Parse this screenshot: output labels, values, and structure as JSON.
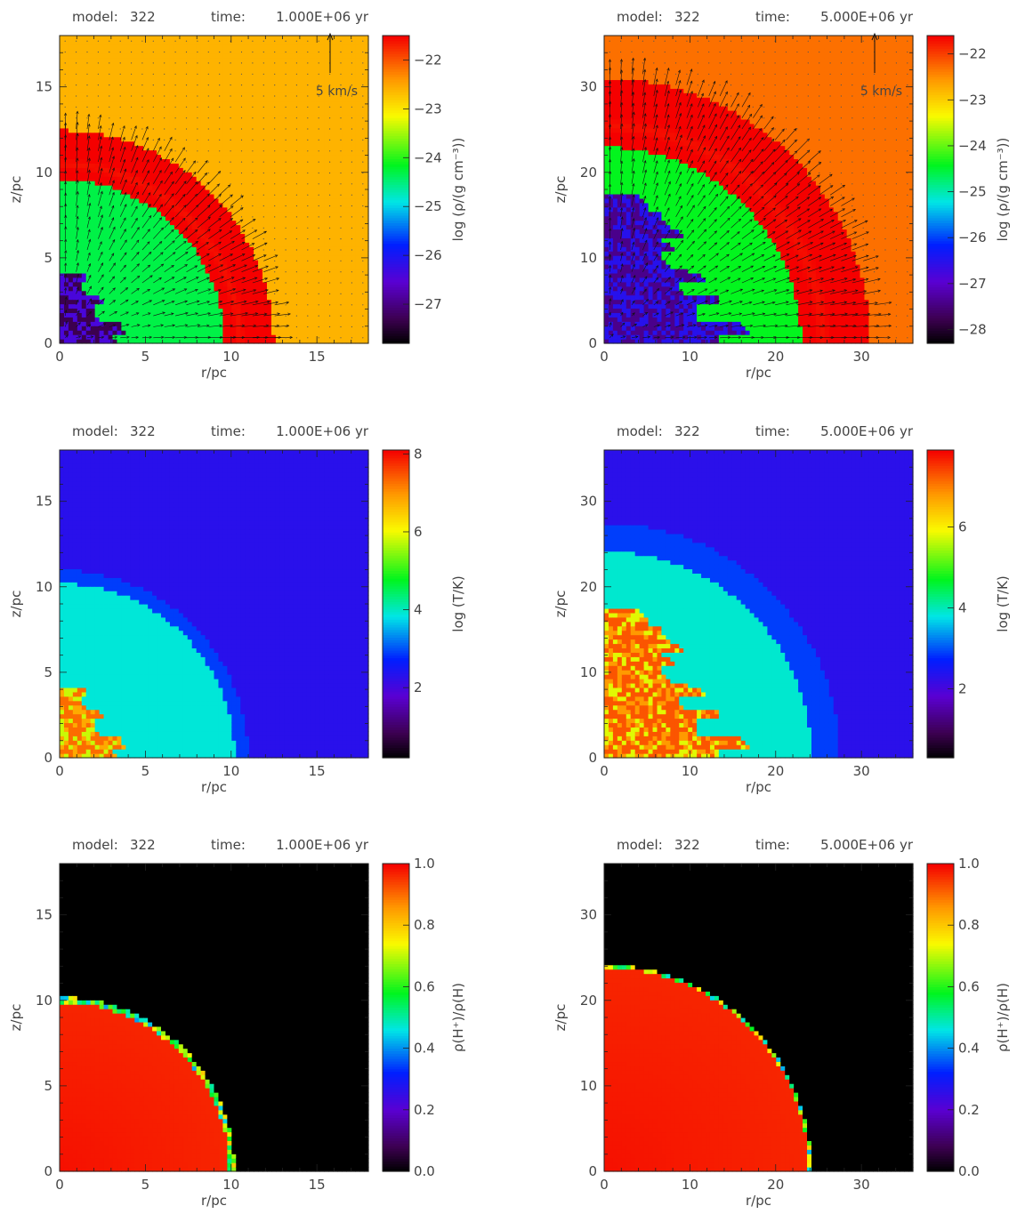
{
  "figure_title": "",
  "chart_data": [
    {
      "type": "heatmap",
      "panel": "density-t1",
      "header": {
        "model_label": "model:",
        "model_value": "322",
        "time_label": "time:",
        "time_value": "1.000E+06 yr"
      },
      "xlabel": "r/pc",
      "ylabel": "z/pc",
      "xlim": [
        0,
        18
      ],
      "ylim": [
        0,
        18
      ],
      "xticks": [
        0,
        5,
        10,
        15
      ],
      "yticks": [
        0,
        5,
        10,
        15
      ],
      "colorbar": {
        "label": "log (ρ/(g cm⁻³))",
        "ticks": [
          -22,
          -23,
          -24,
          -25,
          -26,
          -27
        ],
        "range": [
          -27.8,
          -21.5
        ],
        "colormap": "rainbow"
      },
      "regions": {
        "ambient": -22.6,
        "bubble": -24.3,
        "shell_radius": 10.5,
        "shell_width": 0.9,
        "shell_value": -21.6,
        "hot_extent": 3.5,
        "hot_value": -26.4,
        "hot_low": -27.3
      },
      "velocity_arrows": true,
      "reference_arrow": {
        "label": "5 km/s",
        "value": 5
      }
    },
    {
      "type": "heatmap",
      "panel": "density-t5",
      "header": {
        "model_label": "model:",
        "model_value": "322",
        "time_label": "time:",
        "time_value": "5.000E+06 yr"
      },
      "xlabel": "r/pc",
      "ylabel": "z/pc",
      "xlim": [
        0,
        36
      ],
      "ylim": [
        0,
        36
      ],
      "xticks": [
        0,
        10,
        20,
        30
      ],
      "yticks": [
        0,
        10,
        20,
        30
      ],
      "colorbar": {
        "label": "log (ρ/(g cm⁻³))",
        "ticks": [
          -22,
          -23,
          -24,
          -25,
          -26,
          -27,
          -28
        ],
        "range": [
          -28.3,
          -21.6
        ],
        "colormap": "rainbow"
      },
      "regions": {
        "ambient": -22.3,
        "bubble": -24.4,
        "shell_radius": 25.5,
        "shell_width": 2.5,
        "shell_value": -21.7,
        "hot_extent": 9,
        "hot_value": -26.5,
        "hot_low": -27.4
      },
      "velocity_arrows": true,
      "reference_arrow": {
        "label": "5 km/s",
        "value": 5
      }
    },
    {
      "type": "heatmap",
      "panel": "temperature-t1",
      "header": {
        "model_label": "model:",
        "model_value": "322",
        "time_label": "time:",
        "time_value": "1.000E+06 yr"
      },
      "xlabel": "r/pc",
      "ylabel": "z/pc",
      "xlim": [
        0,
        18
      ],
      "ylim": [
        0,
        18
      ],
      "xticks": [
        0,
        5,
        10,
        15
      ],
      "yticks": [
        0,
        5,
        10,
        15
      ],
      "colorbar": {
        "label": "log (T/K)",
        "ticks": [
          8,
          6,
          4,
          2
        ],
        "range": [
          0.2,
          8.1
        ],
        "colormap": "rainbow"
      },
      "regions": {
        "ambient": 2.3,
        "outer_shell": 2.9,
        "outer_radius": 11,
        "bubble": 3.9,
        "bubble_radius": 10.2,
        "hot_extent": 3.5,
        "hot_value": 7.3
      },
      "velocity_arrows": false
    },
    {
      "type": "heatmap",
      "panel": "temperature-t5",
      "header": {
        "model_label": "model:",
        "model_value": "322",
        "time_label": "time:",
        "time_value": "5.000E+06 yr"
      },
      "xlabel": "r/pc",
      "ylabel": "z/pc",
      "xlim": [
        0,
        36
      ],
      "ylim": [
        0,
        36
      ],
      "xticks": [
        0,
        10,
        20,
        30
      ],
      "yticks": [
        0,
        10,
        20,
        30
      ],
      "colorbar": {
        "label": "log (T/K)",
        "ticks": [
          6,
          4,
          2
        ],
        "range": [
          0.3,
          7.9
        ],
        "colormap": "rainbow"
      },
      "regions": {
        "ambient": 2.3,
        "outer_shell": 2.9,
        "outer_radius": 27.5,
        "bubble": 3.9,
        "bubble_radius": 24.2,
        "hot_extent": 9,
        "hot_value": 7.3
      },
      "velocity_arrows": false
    },
    {
      "type": "heatmap",
      "panel": "ionization-t1",
      "header": {
        "model_label": "model:",
        "model_value": "322",
        "time_label": "time:",
        "time_value": "1.000E+06 yr"
      },
      "xlabel": "r/pc",
      "ylabel": "z/pc",
      "xlim": [
        0,
        18
      ],
      "ylim": [
        0,
        18
      ],
      "xticks": [
        0,
        5,
        10,
        15
      ],
      "yticks": [
        0,
        5,
        10,
        15
      ],
      "colorbar": {
        "label": "ρ(H⁺)/ρ(H)",
        "ticks": [
          1.0,
          0.8,
          0.6,
          0.4,
          0.2,
          0.0
        ],
        "tick_labels": [
          "1.0",
          "0.8",
          "0.6",
          "0.4",
          "0.2",
          "0.0"
        ],
        "range": [
          0,
          1
        ],
        "colormap": "rainbow"
      },
      "regions": {
        "ionized_radius": 10.2,
        "ionized_value": 0.985,
        "neutral_value": 0.0
      },
      "velocity_arrows": false
    },
    {
      "type": "heatmap",
      "panel": "ionization-t5",
      "header": {
        "model_label": "model:",
        "model_value": "322",
        "time_label": "time:",
        "time_value": "5.000E+06 yr"
      },
      "xlabel": "r/pc",
      "ylabel": "z/pc",
      "xlim": [
        0,
        36
      ],
      "ylim": [
        0,
        36
      ],
      "xticks": [
        0,
        10,
        20,
        30
      ],
      "yticks": [
        0,
        10,
        20,
        30
      ],
      "colorbar": {
        "label": "ρ(H⁺)/ρ(H)",
        "ticks": [
          1.0,
          0.8,
          0.6,
          0.4,
          0.2,
          0.0
        ],
        "tick_labels": [
          "1.0",
          "0.8",
          "0.6",
          "0.4",
          "0.2",
          "0.0"
        ],
        "range": [
          0,
          1
        ],
        "colormap": "rainbow"
      },
      "regions": {
        "ionized_radius": 24.2,
        "ionized_value": 0.985,
        "neutral_value": 0.0
      },
      "velocity_arrows": false
    }
  ]
}
